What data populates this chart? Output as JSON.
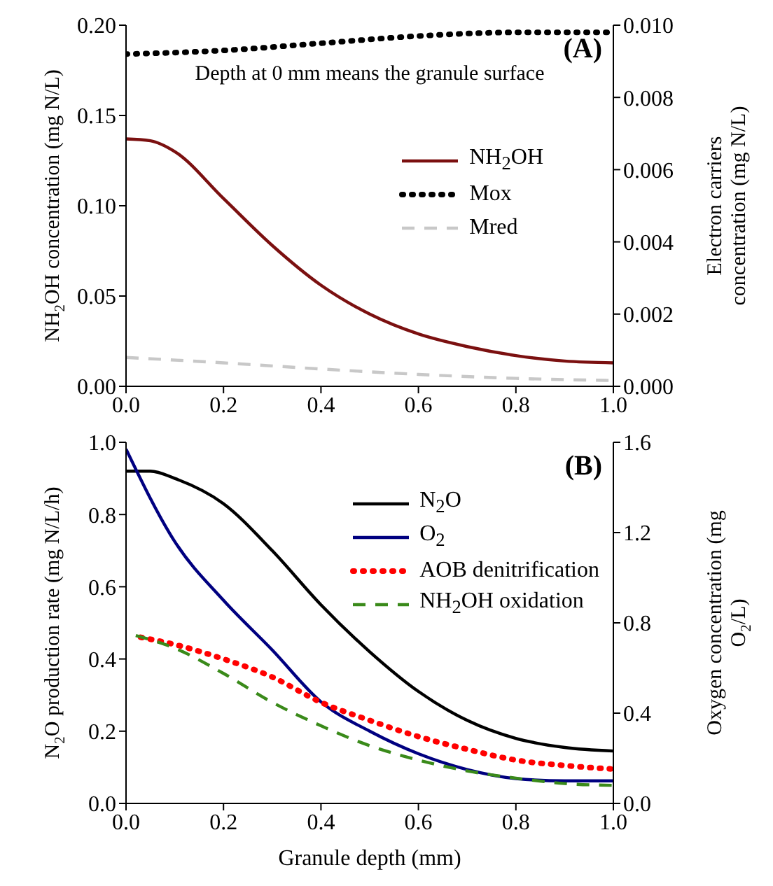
{
  "chart_data": [
    {
      "type": "line",
      "ylabel": "NH$_{2}$OH concentration (mg N/L)",
      "y2label": "Electron carriers concentration (mg N/L)",
      "annotations": [
        "(A)",
        "Depth at 0 mm means the granule surface"
      ],
      "xlim": [
        0,
        1
      ],
      "xticks": [
        {
          "value": 0,
          "label": "0.0"
        },
        {
          "value": 0.2,
          "label": "0.2"
        },
        {
          "value": 0.4,
          "label": "0.4"
        },
        {
          "value": 0.6,
          "label": "0.6"
        },
        {
          "value": 0.8,
          "label": "0.8"
        },
        {
          "value": 1,
          "label": "1.0"
        }
      ],
      "ylim": [
        0,
        0.2
      ],
      "yticks": [
        {
          "value": 0,
          "label": "0.00"
        },
        {
          "value": 0.05,
          "label": "0.05"
        },
        {
          "value": 0.1,
          "label": "0.10"
        },
        {
          "value": 0.15,
          "label": "0.15"
        },
        {
          "value": 0.2,
          "label": "0.20"
        }
      ],
      "y2lim": [
        0,
        0.01
      ],
      "y2ticks": [
        {
          "value": 0,
          "label": "0.000"
        },
        {
          "value": 0.002,
          "label": "0.002"
        },
        {
          "value": 0.004,
          "label": "0.004"
        },
        {
          "value": 0.006,
          "label": "0.006"
        },
        {
          "value": 0.008,
          "label": "0.008"
        },
        {
          "value": 0.01,
          "label": "0.010"
        }
      ],
      "grid": false,
      "legend": "right",
      "marker": "none",
      "series": [
        {
          "name": "NH$_{2}$OH",
          "color": "#7b1010",
          "line_style": "solid",
          "x": [
            0,
            0.05,
            0.1,
            0.2,
            0.3,
            0.4,
            0.5,
            0.6,
            0.7,
            0.8,
            0.9,
            1
          ],
          "values": [
            0.137,
            0.136,
            0.13,
            0.104,
            0.078,
            0.056,
            0.04,
            0.029,
            0.022,
            0.017,
            0.014,
            0.013
          ]
        },
        {
          "name": "Mox",
          "color": "#000000",
          "line_style": "dotted",
          "axis": "y2",
          "x": [
            0,
            0.2,
            0.4,
            0.6,
            0.8,
            1
          ],
          "values": [
            0.0092,
            0.0093,
            0.0095,
            0.0097,
            0.0098,
            0.0098
          ]
        },
        {
          "name": "Mred",
          "color": "#c8c8c8",
          "line_style": "dashed",
          "axis": "y2",
          "x": [
            0,
            0.2,
            0.4,
            0.6,
            0.8,
            1
          ],
          "values": [
            0.0008,
            0.00065,
            0.00048,
            0.00033,
            0.00022,
            0.00016
          ]
        }
      ]
    },
    {
      "type": "line",
      "xlabel": "Granule depth (mm)",
      "ylabel": "N$_{2}$O production rate (mg N/L/h)",
      "y2label": "Oxygen concentration (mg O$_{2}$/L)",
      "annotations": [
        "(B)"
      ],
      "xlim": [
        0,
        1
      ],
      "xticks": [
        {
          "value": 0,
          "label": "0.0"
        },
        {
          "value": 0.2,
          "label": "0.2"
        },
        {
          "value": 0.4,
          "label": "0.4"
        },
        {
          "value": 0.6,
          "label": "0.6"
        },
        {
          "value": 0.8,
          "label": "0.8"
        },
        {
          "value": 1,
          "label": "1.0"
        }
      ],
      "ylim": [
        0,
        1
      ],
      "yticks": [
        {
          "value": 0,
          "label": "0.0"
        },
        {
          "value": 0.2,
          "label": "0.2"
        },
        {
          "value": 0.4,
          "label": "0.4"
        },
        {
          "value": 0.6,
          "label": "0.6"
        },
        {
          "value": 0.8,
          "label": "0.8"
        },
        {
          "value": 1,
          "label": "1.0"
        }
      ],
      "y2lim": [
        0,
        1.6
      ],
      "y2ticks": [
        {
          "value": 0,
          "label": "0.0"
        },
        {
          "value": 0.4,
          "label": "0.4"
        },
        {
          "value": 0.8,
          "label": "0.8"
        },
        {
          "value": 1.2,
          "label": "1.2"
        },
        {
          "value": 1.6,
          "label": "1.6"
        }
      ],
      "grid": false,
      "legend": "top right",
      "marker": "none",
      "series": [
        {
          "name": "N$_{2}$O",
          "color": "#000000",
          "line_style": "solid",
          "x": [
            0,
            0.05,
            0.1,
            0.2,
            0.3,
            0.4,
            0.5,
            0.6,
            0.7,
            0.8,
            0.9,
            1
          ],
          "values": [
            0.92,
            0.92,
            0.9,
            0.83,
            0.7,
            0.55,
            0.42,
            0.31,
            0.23,
            0.18,
            0.155,
            0.145
          ]
        },
        {
          "name": "O$_{2}$",
          "color": "#000080",
          "line_style": "solid",
          "axis": "y2",
          "x": [
            0,
            0.1,
            0.2,
            0.3,
            0.4,
            0.5,
            0.6,
            0.7,
            0.8,
            0.9,
            1
          ],
          "values": [
            1.57,
            1.16,
            0.9,
            0.68,
            0.45,
            0.32,
            0.22,
            0.15,
            0.11,
            0.1,
            0.1
          ]
        },
        {
          "name": "AOB denitrification",
          "color": "#ff0000",
          "line_style": "dotted",
          "x": [
            0.03,
            0.1,
            0.2,
            0.3,
            0.4,
            0.5,
            0.6,
            0.7,
            0.8,
            0.9,
            1
          ],
          "values": [
            0.46,
            0.44,
            0.4,
            0.35,
            0.28,
            0.23,
            0.185,
            0.15,
            0.12,
            0.105,
            0.095
          ]
        },
        {
          "name": "NH$_{2}$OH oxidation",
          "color": "#3a8a1a",
          "line_style": "dashed",
          "x": [
            0.02,
            0.1,
            0.2,
            0.3,
            0.4,
            0.5,
            0.6,
            0.7,
            0.8,
            0.9,
            1
          ],
          "values": [
            0.465,
            0.43,
            0.36,
            0.28,
            0.215,
            0.16,
            0.12,
            0.09,
            0.07,
            0.055,
            0.05
          ]
        }
      ]
    }
  ]
}
